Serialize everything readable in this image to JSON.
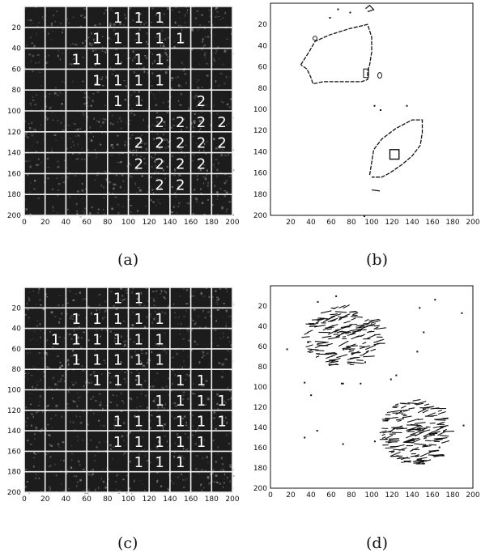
{
  "figure": {
    "panels": [
      {
        "id": "a",
        "kind": "labeled-grid-image",
        "caption": "(a)",
        "x_ticks": [
          "0",
          "20",
          "40",
          "60",
          "80",
          "100",
          "120",
          "140",
          "160",
          "180",
          "200"
        ],
        "y_ticks": [
          "20",
          "40",
          "60",
          "80",
          "100",
          "120",
          "140",
          "160",
          "180",
          "200"
        ],
        "grid_size": 10,
        "cell_labels": [
          {
            "row": 0,
            "col": 4,
            "text": "1"
          },
          {
            "row": 0,
            "col": 5,
            "text": "1"
          },
          {
            "row": 0,
            "col": 6,
            "text": "1"
          },
          {
            "row": 1,
            "col": 3,
            "text": "1"
          },
          {
            "row": 1,
            "col": 4,
            "text": "1"
          },
          {
            "row": 1,
            "col": 5,
            "text": "1"
          },
          {
            "row": 1,
            "col": 6,
            "text": "1"
          },
          {
            "row": 1,
            "col": 7,
            "text": "1"
          },
          {
            "row": 2,
            "col": 2,
            "text": "1"
          },
          {
            "row": 2,
            "col": 3,
            "text": "1"
          },
          {
            "row": 2,
            "col": 4,
            "text": "1"
          },
          {
            "row": 2,
            "col": 5,
            "text": "1"
          },
          {
            "row": 2,
            "col": 6,
            "text": "1"
          },
          {
            "row": 3,
            "col": 3,
            "text": "1"
          },
          {
            "row": 3,
            "col": 4,
            "text": "1"
          },
          {
            "row": 3,
            "col": 5,
            "text": "1"
          },
          {
            "row": 3,
            "col": 6,
            "text": "1"
          },
          {
            "row": 4,
            "col": 4,
            "text": "1"
          },
          {
            "row": 4,
            "col": 5,
            "text": "1"
          },
          {
            "row": 4,
            "col": 8,
            "text": "2"
          },
          {
            "row": 5,
            "col": 6,
            "text": "2"
          },
          {
            "row": 5,
            "col": 7,
            "text": "2"
          },
          {
            "row": 5,
            "col": 8,
            "text": "2"
          },
          {
            "row": 5,
            "col": 9,
            "text": "2"
          },
          {
            "row": 6,
            "col": 5,
            "text": "2"
          },
          {
            "row": 6,
            "col": 6,
            "text": "2"
          },
          {
            "row": 6,
            "col": 7,
            "text": "2"
          },
          {
            "row": 6,
            "col": 8,
            "text": "2"
          },
          {
            "row": 6,
            "col": 9,
            "text": "2"
          },
          {
            "row": 7,
            "col": 5,
            "text": "2"
          },
          {
            "row": 7,
            "col": 6,
            "text": "2"
          },
          {
            "row": 7,
            "col": 7,
            "text": "2"
          },
          {
            "row": 7,
            "col": 8,
            "text": "2"
          },
          {
            "row": 8,
            "col": 6,
            "text": "2"
          },
          {
            "row": 8,
            "col": 7,
            "text": "2"
          }
        ]
      },
      {
        "id": "b",
        "kind": "contour-plot",
        "caption": "(b)",
        "x_ticks": [
          "20",
          "40",
          "60",
          "80",
          "100",
          "120",
          "140",
          "160",
          "180",
          "200"
        ],
        "y_ticks": [
          "20",
          "40",
          "60",
          "80",
          "100",
          "120",
          "140",
          "160",
          "180",
          "200"
        ]
      },
      {
        "id": "c",
        "kind": "labeled-grid-image",
        "caption": "(c)",
        "x_ticks": [
          "0",
          "20",
          "40",
          "60",
          "80",
          "100",
          "120",
          "140",
          "160",
          "180",
          "200"
        ],
        "y_ticks": [
          "20",
          "40",
          "60",
          "80",
          "100",
          "120",
          "140",
          "160",
          "180",
          "200"
        ],
        "grid_size": 10,
        "cell_labels": [
          {
            "row": 0,
            "col": 4,
            "text": "1"
          },
          {
            "row": 0,
            "col": 5,
            "text": "1"
          },
          {
            "row": 1,
            "col": 2,
            "text": "1"
          },
          {
            "row": 1,
            "col": 3,
            "text": "1"
          },
          {
            "row": 1,
            "col": 4,
            "text": "1"
          },
          {
            "row": 1,
            "col": 5,
            "text": "1"
          },
          {
            "row": 1,
            "col": 6,
            "text": "1"
          },
          {
            "row": 2,
            "col": 1,
            "text": "1"
          },
          {
            "row": 2,
            "col": 2,
            "text": "1"
          },
          {
            "row": 2,
            "col": 3,
            "text": "1"
          },
          {
            "row": 2,
            "col": 4,
            "text": "1"
          },
          {
            "row": 2,
            "col": 5,
            "text": "1"
          },
          {
            "row": 2,
            "col": 6,
            "text": "1"
          },
          {
            "row": 3,
            "col": 2,
            "text": "1"
          },
          {
            "row": 3,
            "col": 3,
            "text": "1"
          },
          {
            "row": 3,
            "col": 4,
            "text": "1"
          },
          {
            "row": 3,
            "col": 5,
            "text": "1"
          },
          {
            "row": 3,
            "col": 6,
            "text": "1"
          },
          {
            "row": 4,
            "col": 3,
            "text": "1"
          },
          {
            "row": 4,
            "col": 4,
            "text": "1"
          },
          {
            "row": 4,
            "col": 5,
            "text": "1"
          },
          {
            "row": 4,
            "col": 7,
            "text": "1"
          },
          {
            "row": 4,
            "col": 8,
            "text": "1"
          },
          {
            "row": 5,
            "col": 6,
            "text": "1"
          },
          {
            "row": 5,
            "col": 7,
            "text": "1"
          },
          {
            "row": 5,
            "col": 8,
            "text": "1"
          },
          {
            "row": 5,
            "col": 9,
            "text": "1"
          },
          {
            "row": 6,
            "col": 4,
            "text": "1"
          },
          {
            "row": 6,
            "col": 5,
            "text": "1"
          },
          {
            "row": 6,
            "col": 6,
            "text": "1"
          },
          {
            "row": 6,
            "col": 7,
            "text": "1"
          },
          {
            "row": 6,
            "col": 8,
            "text": "1"
          },
          {
            "row": 6,
            "col": 9,
            "text": "1"
          },
          {
            "row": 7,
            "col": 4,
            "text": "1"
          },
          {
            "row": 7,
            "col": 5,
            "text": "1"
          },
          {
            "row": 7,
            "col": 6,
            "text": "1"
          },
          {
            "row": 7,
            "col": 7,
            "text": "1"
          },
          {
            "row": 7,
            "col": 8,
            "text": "1"
          },
          {
            "row": 8,
            "col": 5,
            "text": "1"
          },
          {
            "row": 8,
            "col": 6,
            "text": "1"
          },
          {
            "row": 8,
            "col": 7,
            "text": "1"
          }
        ]
      },
      {
        "id": "d",
        "kind": "edge-plot",
        "caption": "(d)",
        "x_ticks": [
          "0",
          "20",
          "40",
          "60",
          "80",
          "100",
          "120",
          "140",
          "160",
          "180",
          "200"
        ],
        "y_ticks": [
          "20",
          "40",
          "60",
          "80",
          "100",
          "120",
          "140",
          "160",
          "180",
          "200"
        ]
      }
    ],
    "colors": {
      "ink": "#111111",
      "image_dark": "#1c1c1c",
      "grid_line": "#eeeeee",
      "paper": "#ffffff"
    }
  }
}
